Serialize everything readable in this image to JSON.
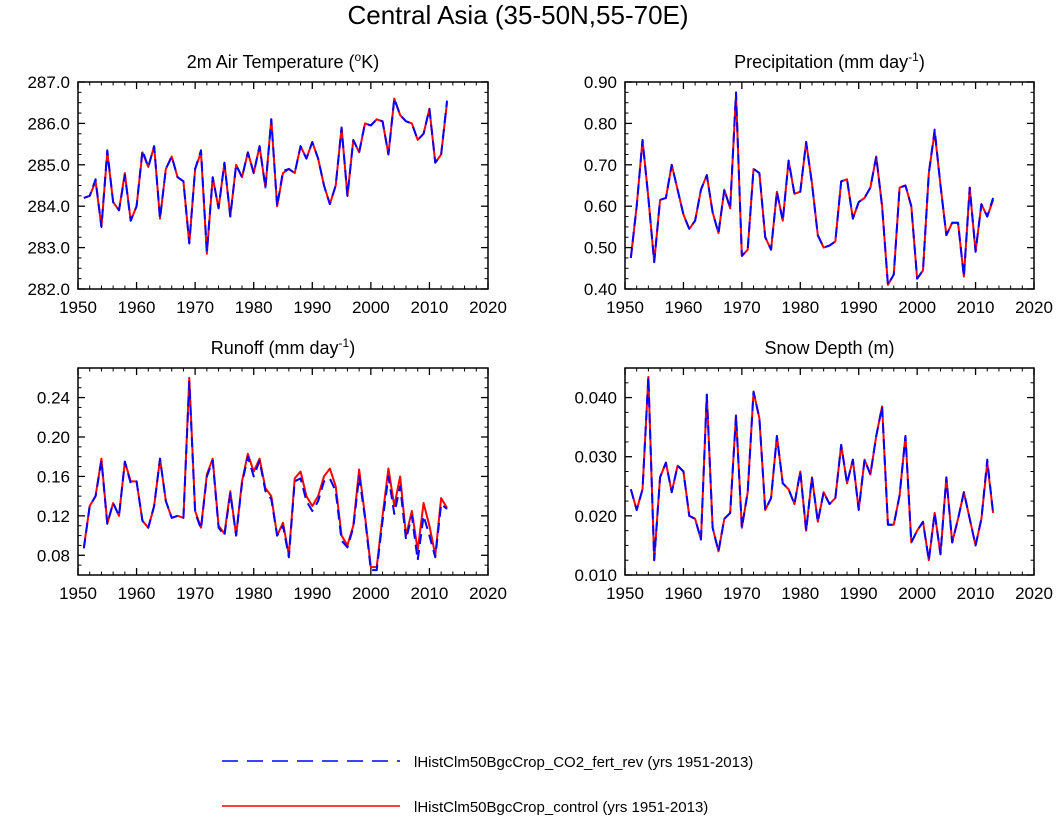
{
  "figure_title": "Central Asia (35-50N,55-70E)",
  "legend": [
    {
      "label": "lHistClm50BgcCrop_CO2_fert_rev (yrs 1951-2013)",
      "color": "#0000ff",
      "style": "dashed"
    },
    {
      "label": "lHistClm50BgcCrop_control (yrs 1951-2013)",
      "color": "#ff0000",
      "style": "solid"
    }
  ],
  "chart_data": [
    {
      "type": "line",
      "title": "2m Air Temperature (oK)",
      "title_main": "2m Air Temperature (",
      "title_super": "o",
      "title_tail": "K)",
      "xlim": [
        1950,
        2020
      ],
      "ylim": [
        282.0,
        287.0
      ],
      "xticks": [
        1950,
        1960,
        1970,
        1980,
        1990,
        2000,
        2010,
        2020
      ],
      "yticks": [
        282.0,
        283.0,
        284.0,
        285.0,
        286.0,
        287.0
      ],
      "ytick_labels": [
        "282.0",
        "283.0",
        "284.0",
        "285.0",
        "286.0",
        "287.0"
      ],
      "x_start": 1951,
      "series": [
        {
          "name": "lHistClm50BgcCrop_control (yrs 1951-2013)",
          "color": "#ff0000",
          "style": "solid",
          "values": [
            284.2,
            284.25,
            284.6,
            283.5,
            285.3,
            284.1,
            283.9,
            284.8,
            283.65,
            284.0,
            285.3,
            284.95,
            285.45,
            283.7,
            284.9,
            285.2,
            284.7,
            284.6,
            283.1,
            284.9,
            285.3,
            282.85,
            284.7,
            283.95,
            285.05,
            283.75,
            285.0,
            284.7,
            285.3,
            284.8,
            285.45,
            284.45,
            286.1,
            284.0,
            284.8,
            284.9,
            284.8,
            285.45,
            285.15,
            285.55,
            285.15,
            284.5,
            284.05,
            284.5,
            285.9,
            284.25,
            285.6,
            285.3,
            286.0,
            285.95,
            286.1,
            286.05,
            285.25,
            286.6,
            286.2,
            286.05,
            286.0,
            285.6,
            285.75,
            286.35,
            285.05,
            285.25,
            286.5
          ]
        },
        {
          "name": "lHistClm50BgcCrop_CO2_fert_rev (yrs 1951-2013)",
          "color": "#0000ff",
          "style": "dashed",
          "values": [
            284.2,
            284.25,
            284.65,
            283.5,
            285.35,
            284.1,
            283.9,
            284.75,
            283.65,
            284.0,
            285.35,
            284.95,
            285.45,
            283.7,
            284.9,
            285.2,
            284.7,
            284.6,
            283.1,
            284.9,
            285.35,
            282.9,
            284.7,
            283.95,
            285.05,
            283.75,
            285.0,
            284.7,
            285.3,
            284.8,
            285.45,
            284.45,
            286.1,
            284.0,
            284.85,
            284.9,
            284.8,
            285.45,
            285.15,
            285.55,
            285.15,
            284.5,
            284.05,
            284.5,
            285.9,
            284.25,
            285.6,
            285.3,
            286.0,
            285.95,
            286.1,
            286.05,
            285.25,
            286.6,
            286.2,
            286.05,
            286.0,
            285.6,
            285.75,
            286.35,
            285.05,
            285.25,
            286.55
          ]
        }
      ]
    },
    {
      "type": "line",
      "title": "Precipitation (mm day-1)",
      "title_main": "Precipitation (mm day",
      "title_super": "-1",
      "title_tail": ")",
      "xlim": [
        1950,
        2020
      ],
      "ylim": [
        0.4,
        0.9
      ],
      "xticks": [
        1950,
        1960,
        1970,
        1980,
        1990,
        2000,
        2010,
        2020
      ],
      "yticks": [
        0.4,
        0.5,
        0.6,
        0.7,
        0.8,
        0.9
      ],
      "ytick_labels": [
        "0.40",
        "0.50",
        "0.60",
        "0.70",
        "0.80",
        "0.90"
      ],
      "x_start": 1951,
      "series": [
        {
          "name": "lHistClm50BgcCrop_control (yrs 1951-2013)",
          "color": "#ff0000",
          "style": "solid",
          "values": [
            0.475,
            0.6,
            0.76,
            0.62,
            0.465,
            0.615,
            0.62,
            0.7,
            0.64,
            0.58,
            0.545,
            0.565,
            0.64,
            0.675,
            0.585,
            0.535,
            0.64,
            0.595,
            0.87,
            0.48,
            0.495,
            0.69,
            0.68,
            0.525,
            0.495,
            0.635,
            0.565,
            0.71,
            0.63,
            0.635,
            0.755,
            0.655,
            0.53,
            0.5,
            0.505,
            0.515,
            0.66,
            0.665,
            0.57,
            0.61,
            0.62,
            0.645,
            0.72,
            0.6,
            0.41,
            0.435,
            0.645,
            0.65,
            0.6,
            0.425,
            0.445,
            0.68,
            0.78,
            0.65,
            0.53,
            0.56,
            0.56,
            0.43,
            0.645,
            0.49,
            0.605,
            0.575,
            0.615
          ]
        },
        {
          "name": "lHistClm50BgcCrop_CO2_fert_rev (yrs 1951-2013)",
          "color": "#0000ff",
          "style": "dashed",
          "values": [
            0.475,
            0.6,
            0.76,
            0.62,
            0.465,
            0.615,
            0.62,
            0.7,
            0.64,
            0.58,
            0.545,
            0.565,
            0.64,
            0.675,
            0.585,
            0.535,
            0.64,
            0.595,
            0.875,
            0.48,
            0.495,
            0.69,
            0.68,
            0.525,
            0.495,
            0.635,
            0.565,
            0.71,
            0.63,
            0.635,
            0.755,
            0.655,
            0.53,
            0.5,
            0.505,
            0.515,
            0.66,
            0.665,
            0.57,
            0.61,
            0.62,
            0.645,
            0.72,
            0.6,
            0.41,
            0.435,
            0.645,
            0.65,
            0.6,
            0.425,
            0.445,
            0.68,
            0.785,
            0.65,
            0.53,
            0.56,
            0.56,
            0.43,
            0.645,
            0.49,
            0.605,
            0.575,
            0.62
          ]
        }
      ]
    },
    {
      "type": "line",
      "title": "Runoff (mm day-1)",
      "title_main": "Runoff (mm day",
      "title_super": "-1",
      "title_tail": ")",
      "xlim": [
        1950,
        2020
      ],
      "ylim": [
        0.06,
        0.27
      ],
      "xticks": [
        1950,
        1960,
        1970,
        1980,
        1990,
        2000,
        2010,
        2020
      ],
      "yticks": [
        0.08,
        0.12,
        0.16,
        0.2,
        0.24
      ],
      "ytick_labels": [
        "0.08",
        "0.12",
        "0.16",
        "0.20",
        "0.24"
      ],
      "x_start": 1951,
      "series": [
        {
          "name": "lHistClm50BgcCrop_control (yrs 1951-2013)",
          "color": "#ff0000",
          "style": "solid",
          "values": [
            0.088,
            0.13,
            0.14,
            0.178,
            0.112,
            0.133,
            0.12,
            0.175,
            0.155,
            0.155,
            0.115,
            0.108,
            0.13,
            0.178,
            0.135,
            0.118,
            0.12,
            0.118,
            0.26,
            0.125,
            0.108,
            0.162,
            0.178,
            0.11,
            0.102,
            0.145,
            0.1,
            0.155,
            0.183,
            0.165,
            0.178,
            0.148,
            0.14,
            0.1,
            0.113,
            0.08,
            0.158,
            0.165,
            0.14,
            0.13,
            0.14,
            0.16,
            0.168,
            0.15,
            0.1,
            0.09,
            0.11,
            0.167,
            0.12,
            0.068,
            0.068,
            0.12,
            0.168,
            0.13,
            0.16,
            0.1,
            0.125,
            0.085,
            0.133,
            0.11,
            0.08,
            0.138,
            0.128
          ]
        },
        {
          "name": "lHistClm50BgcCrop_CO2_fert_rev (yrs 1951-2013)",
          "color": "#0000ff",
          "style": "dashed",
          "values": [
            0.087,
            0.13,
            0.14,
            0.176,
            0.112,
            0.133,
            0.12,
            0.175,
            0.153,
            0.155,
            0.115,
            0.108,
            0.13,
            0.178,
            0.135,
            0.118,
            0.12,
            0.118,
            0.256,
            0.123,
            0.107,
            0.16,
            0.176,
            0.108,
            0.1,
            0.143,
            0.1,
            0.153,
            0.18,
            0.16,
            0.176,
            0.145,
            0.137,
            0.1,
            0.11,
            0.078,
            0.155,
            0.158,
            0.135,
            0.125,
            0.135,
            0.155,
            0.158,
            0.145,
            0.095,
            0.088,
            0.108,
            0.16,
            0.118,
            0.065,
            0.065,
            0.115,
            0.16,
            0.122,
            0.15,
            0.096,
            0.12,
            0.075,
            0.12,
            0.1,
            0.078,
            0.132,
            0.127
          ]
        }
      ]
    },
    {
      "type": "line",
      "title": "Snow Depth (m)",
      "title_main": "Snow Depth (m)",
      "title_super": "",
      "title_tail": "",
      "xlim": [
        1950,
        2020
      ],
      "ylim": [
        0.01,
        0.045
      ],
      "xticks": [
        1950,
        1960,
        1970,
        1980,
        1990,
        2000,
        2010,
        2020
      ],
      "yticks": [
        0.01,
        0.02,
        0.03,
        0.04
      ],
      "ytick_labels": [
        "0.010",
        "0.020",
        "0.030",
        "0.040"
      ],
      "x_start": 1951,
      "series": [
        {
          "name": "lHistClm50BgcCrop_control (yrs 1951-2013)",
          "color": "#ff0000",
          "style": "solid",
          "values": [
            0.0245,
            0.021,
            0.0245,
            0.0435,
            0.0125,
            0.0265,
            0.029,
            0.024,
            0.0285,
            0.0275,
            0.02,
            0.0195,
            0.016,
            0.0405,
            0.018,
            0.014,
            0.0195,
            0.0205,
            0.037,
            0.018,
            0.024,
            0.041,
            0.0365,
            0.021,
            0.023,
            0.0335,
            0.0255,
            0.0245,
            0.022,
            0.0275,
            0.0175,
            0.0265,
            0.019,
            0.024,
            0.022,
            0.023,
            0.032,
            0.0255,
            0.0295,
            0.021,
            0.0295,
            0.027,
            0.0335,
            0.0385,
            0.0185,
            0.0185,
            0.0235,
            0.0335,
            0.0155,
            0.0175,
            0.019,
            0.0125,
            0.0205,
            0.0135,
            0.0265,
            0.0155,
            0.0195,
            0.024,
            0.0195,
            0.015,
            0.0195,
            0.029,
            0.0205
          ]
        },
        {
          "name": "lHistClm50BgcCrop_CO2_fert_rev (yrs 1951-2013)",
          "color": "#0000ff",
          "style": "dashed",
          "values": [
            0.0245,
            0.021,
            0.0245,
            0.0435,
            0.0125,
            0.0265,
            0.029,
            0.024,
            0.0285,
            0.0275,
            0.02,
            0.0195,
            0.016,
            0.0405,
            0.018,
            0.014,
            0.0195,
            0.0205,
            0.037,
            0.018,
            0.024,
            0.041,
            0.0365,
            0.021,
            0.023,
            0.0335,
            0.0255,
            0.0245,
            0.022,
            0.0275,
            0.0175,
            0.0265,
            0.019,
            0.024,
            0.022,
            0.023,
            0.032,
            0.0255,
            0.0295,
            0.021,
            0.0295,
            0.027,
            0.0335,
            0.0385,
            0.0185,
            0.0185,
            0.0235,
            0.0335,
            0.0155,
            0.0175,
            0.019,
            0.0125,
            0.0205,
            0.0135,
            0.0265,
            0.0155,
            0.0195,
            0.024,
            0.0195,
            0.015,
            0.0195,
            0.0295,
            0.0205
          ]
        }
      ]
    }
  ]
}
